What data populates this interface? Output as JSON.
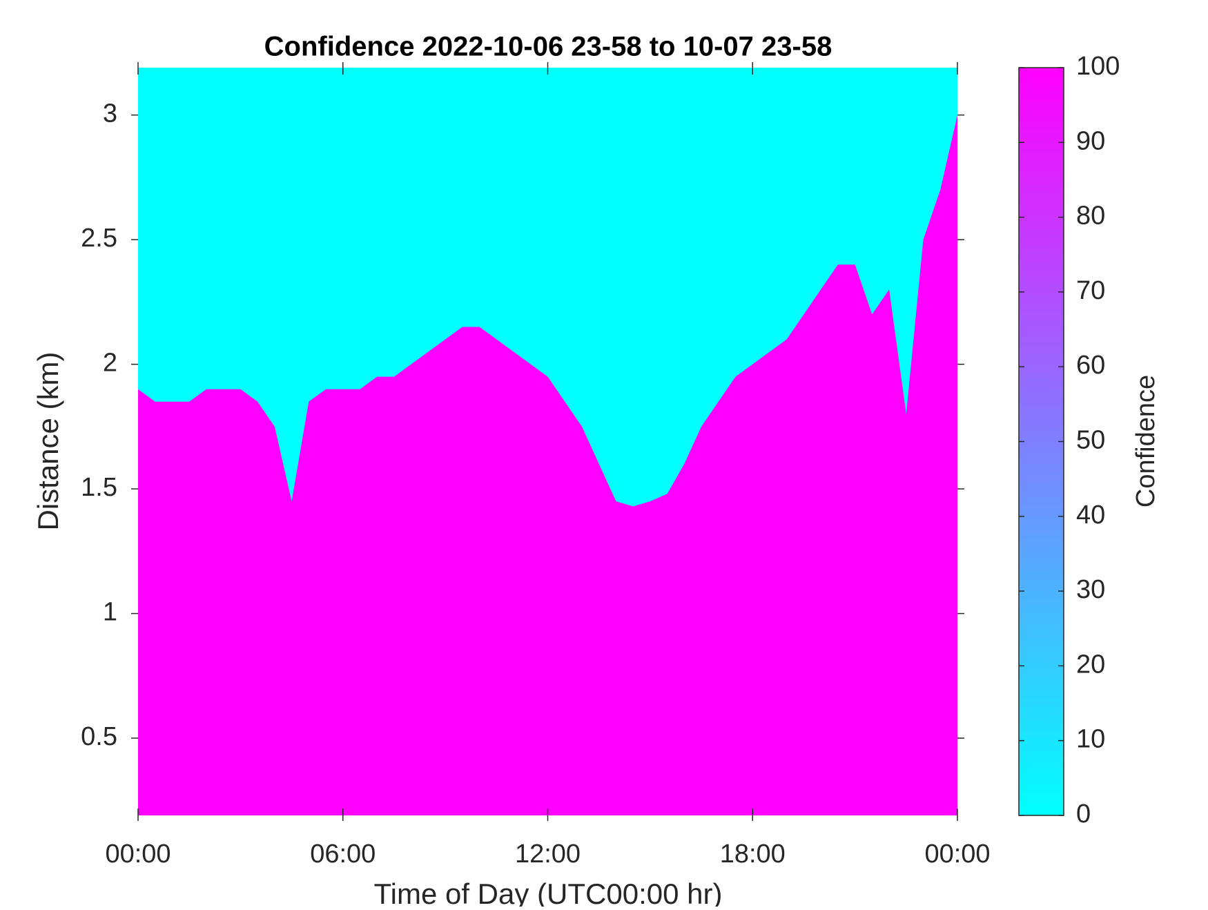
{
  "chart_data": {
    "type": "heatmap",
    "title": "Confidence 2022-10-06 23-58 to 10-07 23-58",
    "xlabel": "Time of Day (UTC00:00 hr)",
    "ylabel": "Distance (km)",
    "colorbar_label": "Confidence",
    "x": [
      0,
      0.5,
      1,
      1.5,
      2,
      2.5,
      3,
      3.5,
      4,
      4.25,
      4.5,
      5,
      5.5,
      6,
      6.5,
      7,
      7.5,
      8,
      8.5,
      9,
      9.5,
      10,
      10.5,
      11,
      11.5,
      12,
      12.5,
      13,
      13.5,
      14,
      14.5,
      15,
      15.5,
      16,
      16.5,
      17,
      17.5,
      18,
      18.5,
      19,
      19.5,
      20,
      20.5,
      21,
      21.5,
      22,
      22.5,
      23,
      23.5,
      24
    ],
    "values": [
      1.9,
      1.85,
      1.85,
      1.85,
      1.9,
      1.9,
      1.9,
      1.85,
      1.75,
      1.6,
      1.45,
      1.85,
      1.9,
      1.9,
      1.9,
      1.95,
      1.95,
      2.0,
      2.05,
      2.1,
      2.15,
      2.15,
      2.1,
      2.05,
      2.0,
      1.95,
      1.85,
      1.75,
      1.6,
      1.45,
      1.43,
      1.45,
      1.48,
      1.6,
      1.75,
      1.85,
      1.95,
      2.0,
      2.05,
      2.1,
      2.2,
      2.3,
      2.4,
      2.4,
      2.2,
      2.3,
      1.8,
      2.5,
      2.7,
      3.0
    ],
    "below_value": 100,
    "above_value": 0,
    "colormap": [
      "#00ffff",
      "#ff00ff"
    ],
    "xlim": [
      0,
      24
    ],
    "xticks": [
      {
        "value": 0,
        "label": "00:00"
      },
      {
        "value": 6,
        "label": "06:00"
      },
      {
        "value": 12,
        "label": "12:00"
      },
      {
        "value": 18,
        "label": "18:00"
      },
      {
        "value": 24,
        "label": "00:00"
      }
    ],
    "ylim": [
      0.19,
      3.19
    ],
    "yticks": [
      0.5,
      1,
      1.5,
      2,
      2.5,
      3
    ],
    "clim": [
      0,
      100
    ],
    "cticks": [
      0,
      10,
      20,
      30,
      40,
      50,
      60,
      70,
      80,
      90,
      100
    ]
  }
}
